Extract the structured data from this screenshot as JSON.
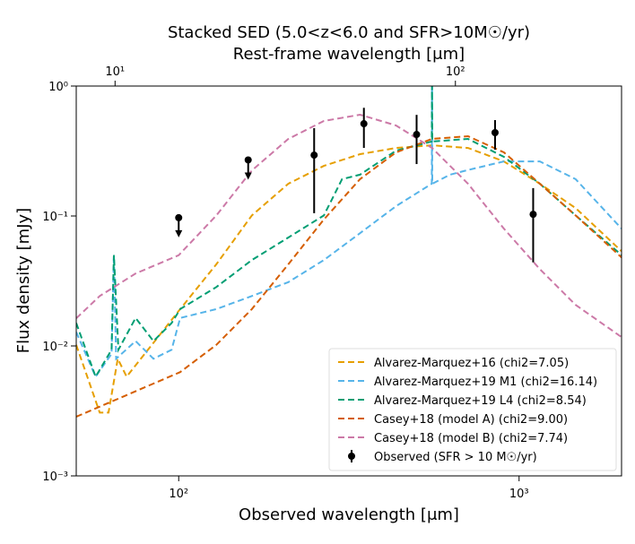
{
  "chart_data": {
    "type": "line",
    "title": "Stacked SED (5.0<z<6.0 and SFR>10M☉/yr)",
    "x2label": "Rest-frame wavelength [μm]",
    "xlabel": "Observed wavelength [μm]",
    "ylabel": "Flux density [mJy]",
    "xscale": "log",
    "yscale": "log",
    "xlim": [
      50,
      2000
    ],
    "xticks": [
      {
        "value": 100,
        "label": "10²"
      },
      {
        "value": 1000,
        "label": "10³"
      }
    ],
    "x2lim": [
      7.69,
      307.7
    ],
    "x2ticks": [
      {
        "value": 10,
        "label": "10¹"
      },
      {
        "value": 100,
        "label": "10²"
      }
    ],
    "ylim": [
      0.001,
      1
    ],
    "yticks": [
      {
        "value": 0.001,
        "label": "10⁻³"
      },
      {
        "value": 0.01,
        "label": "10⁻²"
      },
      {
        "value": 0.1,
        "label": "10⁻¹"
      },
      {
        "value": 1,
        "label": "10⁰"
      }
    ],
    "legend": "lower right",
    "series": [
      {
        "name": "Alvarez-Marquez+16 (chi2=7.05)",
        "color": "#E69F00",
        "x": [
          50,
          58.6,
          62.2,
          66.2,
          70.3,
          101,
          129,
          164,
          210,
          267,
          341,
          435,
          555,
          708,
          902,
          1151,
          1466,
          2000
        ],
        "values": [
          0.0102,
          0.00307,
          0.00307,
          0.00797,
          0.0058,
          0.0192,
          0.0425,
          0.101,
          0.177,
          0.243,
          0.299,
          0.334,
          0.35,
          0.334,
          0.263,
          0.177,
          0.115,
          0.0536
        ]
      },
      {
        "name": "Alvarez-Marquez+19 M1 (chi2=16.14)",
        "color": "#56B4E9",
        "x": [
          50,
          57,
          63.5,
          64.5,
          65.5,
          74.7,
          84.3,
          95.3,
          101,
          129,
          164,
          210,
          267,
          341,
          435,
          554,
          555,
          556,
          627,
          708,
          902,
          1151,
          1466,
          2000
        ],
        "values": [
          0.0128,
          0.0058,
          0.0087,
          0.05,
          0.00797,
          0.0109,
          0.00797,
          0.00934,
          0.0164,
          0.0192,
          0.0242,
          0.031,
          0.0458,
          0.0737,
          0.119,
          0.177,
          1.0,
          0.177,
          0.208,
          0.226,
          0.263,
          0.263,
          0.192,
          0.08
        ]
      },
      {
        "name": "Alvarez-Marquez+19 L4 (chi2=8.54)",
        "color": "#009E73",
        "x": [
          50,
          57,
          63.5,
          64.5,
          66.5,
          74.7,
          84.3,
          95.3,
          101,
          129,
          164,
          210,
          267,
          302,
          341,
          435,
          554,
          555,
          556,
          708,
          902,
          1151,
          1466,
          2000
        ],
        "values": [
          0.015,
          0.0058,
          0.00934,
          0.05,
          0.00934,
          0.0164,
          0.0109,
          0.015,
          0.0192,
          0.0284,
          0.0458,
          0.0683,
          0.101,
          0.192,
          0.208,
          0.318,
          0.374,
          1.0,
          0.374,
          0.392,
          0.285,
          0.177,
          0.101,
          0.05
        ]
      },
      {
        "name": "Casey+18 (model A) (chi2=9.00)",
        "color": "#D55E00",
        "x": [
          50,
          101,
          129,
          164,
          210,
          267,
          341,
          435,
          555,
          708,
          902,
          1151,
          1466,
          2000
        ],
        "values": [
          0.00285,
          0.00629,
          0.0102,
          0.0192,
          0.0425,
          0.094,
          0.192,
          0.309,
          0.392,
          0.411,
          0.309,
          0.177,
          0.101,
          0.048
        ]
      },
      {
        "name": "Casey+18 (model B) (chi2=7.74)",
        "color": "#CC79A7",
        "x": [
          50,
          58.6,
          74.7,
          100,
          129,
          164,
          210,
          267,
          341,
          435,
          555,
          708,
          902,
          1151,
          1466,
          2000
        ],
        "values": [
          0.0163,
          0.0242,
          0.0361,
          0.0499,
          0.101,
          0.224,
          0.392,
          0.538,
          0.602,
          0.497,
          0.334,
          0.177,
          0.08,
          0.039,
          0.0207,
          0.0117
        ]
      }
    ],
    "observed": {
      "name": "Observed (SFR > 10 M☉/yr)",
      "color": "#000000",
      "x": [
        100,
        160,
        250,
        350,
        500,
        850,
        1100
      ],
      "values": [
        0.097,
        0.27,
        0.294,
        0.513,
        0.424,
        0.438,
        0.103
      ],
      "low": [
        null,
        null,
        0.105,
        0.334,
        0.251,
        0.324,
        0.044
      ],
      "high": [
        null,
        null,
        0.474,
        0.68,
        0.6,
        0.547,
        0.164
      ],
      "upper_limit": [
        true,
        true,
        false,
        false,
        false,
        false,
        false
      ]
    }
  }
}
